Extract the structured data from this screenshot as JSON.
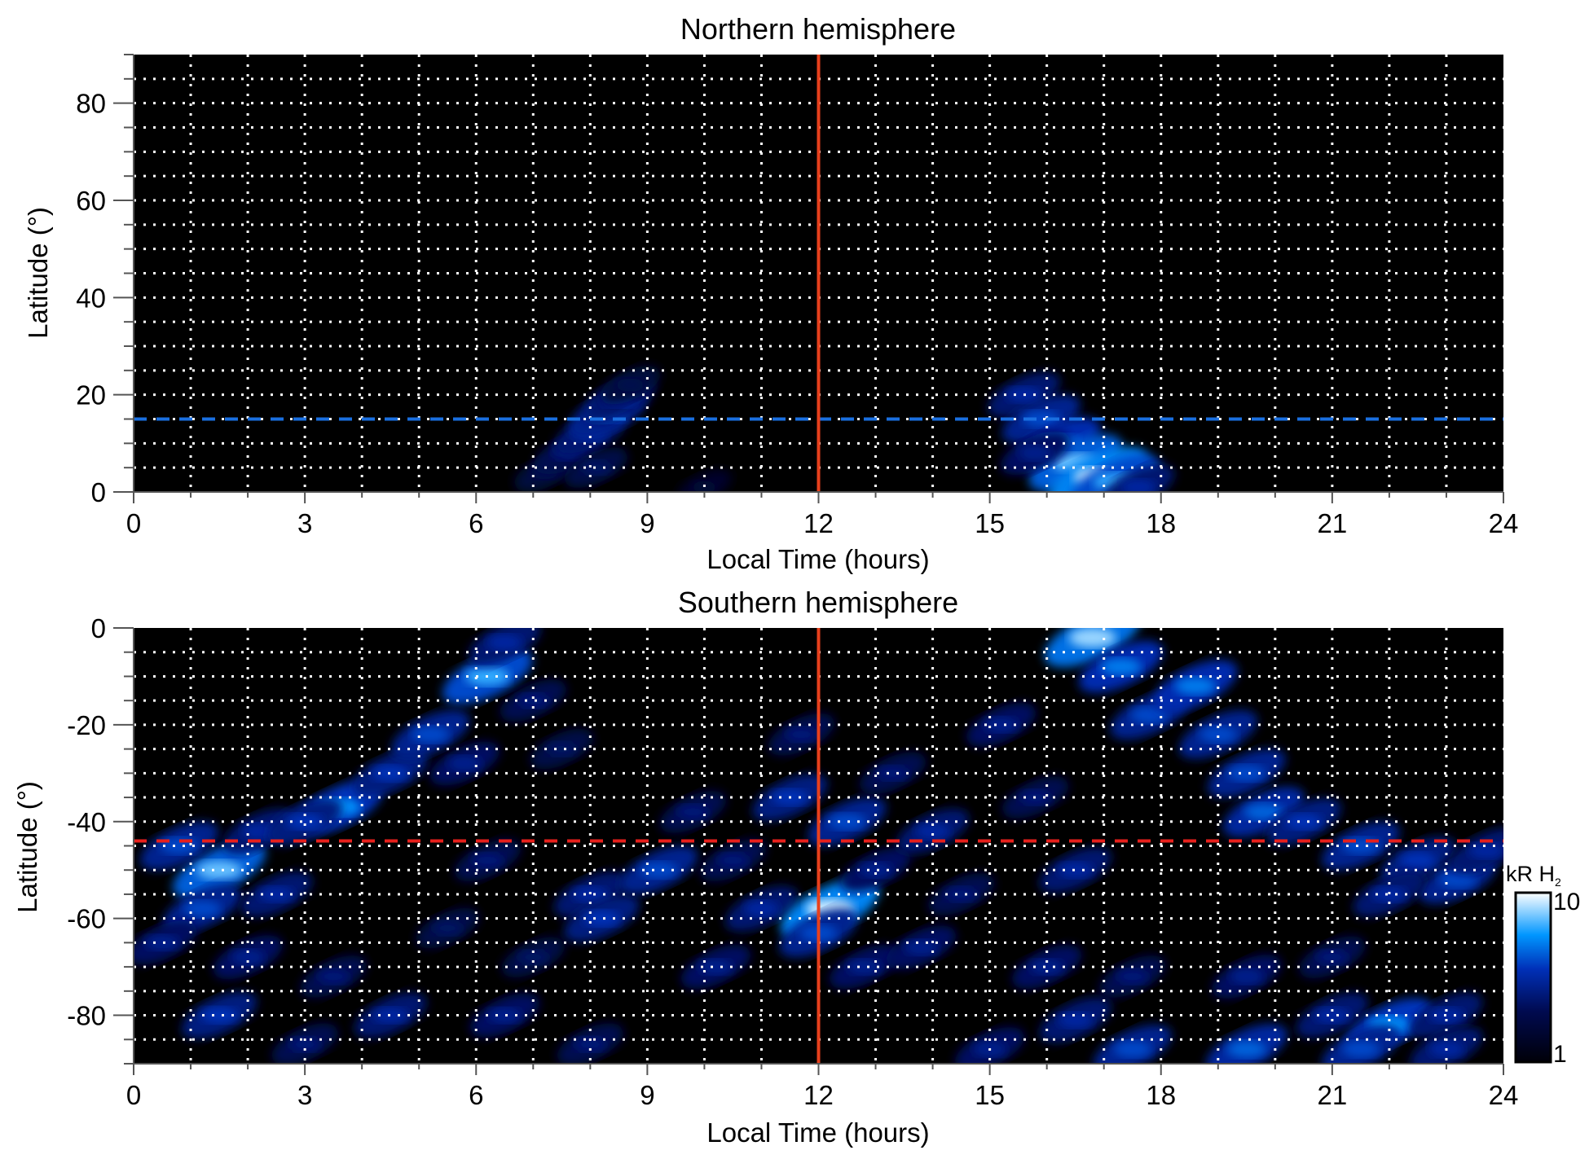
{
  "chart_data": [
    {
      "type": "heatmap",
      "title": "Northern hemisphere",
      "xlabel": "Local Time (hours)",
      "ylabel": "Latitude (°)",
      "xlim": [
        0,
        24
      ],
      "ylim": [
        0,
        90
      ],
      "xticks": [
        0,
        3,
        6,
        9,
        12,
        15,
        18,
        21,
        24
      ],
      "yticks": [
        0,
        20,
        40,
        60,
        80
      ],
      "grid": true,
      "grid_x_step": 1,
      "grid_y_step": 5,
      "vline": {
        "x": 12,
        "color": "#e8401c"
      },
      "hline": {
        "y": 15,
        "color": "#1a6fe0",
        "style": "dashed"
      },
      "emission_regions": [
        [
          7.2,
          4,
          0.3
        ],
        [
          7.6,
          8,
          0.4
        ],
        [
          8.0,
          12,
          0.5
        ],
        [
          8.3,
          16,
          0.6
        ],
        [
          8.5,
          19,
          0.5
        ],
        [
          8.1,
          5,
          0.35
        ],
        [
          8.7,
          22,
          0.3
        ],
        [
          10,
          1,
          0.2
        ],
        [
          15.6,
          20,
          0.5
        ],
        [
          15.9,
          15,
          0.6
        ],
        [
          16.2,
          10,
          0.7
        ],
        [
          16.5,
          6,
          0.85
        ],
        [
          16.9,
          3,
          0.95
        ],
        [
          17.2,
          2,
          0.8
        ],
        [
          15.8,
          8,
          0.45
        ],
        [
          17.6,
          1,
          0.5
        ]
      ]
    },
    {
      "type": "heatmap",
      "title": "Southern hemisphere",
      "xlabel": "Local Time (hours)",
      "ylabel": "Latitude (°)",
      "xlim": [
        0,
        24
      ],
      "ylim": [
        -90,
        0
      ],
      "xticks": [
        0,
        3,
        6,
        9,
        12,
        15,
        18,
        21,
        24
      ],
      "yticks": [
        -80,
        -60,
        -40,
        -20,
        0
      ],
      "grid": true,
      "grid_x_step": 1,
      "grid_y_step": 5,
      "vline": {
        "x": 12,
        "color": "#e8401c"
      },
      "hline": {
        "y": -44,
        "color": "#e8201c",
        "style": "dashed"
      },
      "emission_regions": [
        [
          1.5,
          -50,
          0.85
        ],
        [
          0.8,
          -45,
          0.6
        ],
        [
          1.2,
          -58,
          0.6
        ],
        [
          2.2,
          -42,
          0.5
        ],
        [
          2.5,
          -55,
          0.5
        ],
        [
          3.6,
          -37,
          0.75
        ],
        [
          3.0,
          -40,
          0.55
        ],
        [
          4.5,
          -30,
          0.55
        ],
        [
          5.2,
          -22,
          0.6
        ],
        [
          6.2,
          -10,
          0.8
        ],
        [
          6.5,
          -3,
          0.5
        ],
        [
          5.8,
          -28,
          0.45
        ],
        [
          7.0,
          -15,
          0.4
        ],
        [
          7.5,
          -25,
          0.35
        ],
        [
          0.5,
          -65,
          0.45
        ],
        [
          2.0,
          -68,
          0.45
        ],
        [
          3.5,
          -72,
          0.4
        ],
        [
          1.5,
          -80,
          0.55
        ],
        [
          4.5,
          -80,
          0.5
        ],
        [
          6.5,
          -80,
          0.45
        ],
        [
          3,
          -86,
          0.4
        ],
        [
          8,
          -86,
          0.4
        ],
        [
          7.0,
          -68,
          0.35
        ],
        [
          5.5,
          -62,
          0.35
        ],
        [
          6.2,
          -48,
          0.4
        ],
        [
          8.0,
          -55,
          0.5
        ],
        [
          8.2,
          -60,
          0.55
        ],
        [
          9.2,
          -50,
          0.6
        ],
        [
          9.8,
          -38,
          0.4
        ],
        [
          10.5,
          -48,
          0.4
        ],
        [
          10.2,
          -70,
          0.45
        ],
        [
          11.0,
          -58,
          0.5
        ],
        [
          11.5,
          -35,
          0.55
        ],
        [
          11.7,
          -22,
          0.4
        ],
        [
          12.2,
          -58,
          0.95
        ],
        [
          12.0,
          -63,
          0.6
        ],
        [
          12.5,
          -40,
          0.6
        ],
        [
          13.0,
          -50,
          0.45
        ],
        [
          13.3,
          -30,
          0.4
        ],
        [
          12.8,
          -70,
          0.45
        ],
        [
          14.0,
          -42,
          0.5
        ],
        [
          14.5,
          -55,
          0.4
        ],
        [
          13.8,
          -66,
          0.45
        ],
        [
          15.2,
          -20,
          0.45
        ],
        [
          15.8,
          -35,
          0.4
        ],
        [
          16.5,
          -50,
          0.5
        ],
        [
          16.8,
          -2,
          0.9
        ],
        [
          17.3,
          -8,
          0.7
        ],
        [
          17.8,
          -18,
          0.6
        ],
        [
          18.6,
          -12,
          0.7
        ],
        [
          19.0,
          -22,
          0.6
        ],
        [
          19.5,
          -30,
          0.6
        ],
        [
          19.8,
          -38,
          0.65
        ],
        [
          20.5,
          -40,
          0.55
        ],
        [
          21.5,
          -45,
          0.6
        ],
        [
          22.5,
          -48,
          0.55
        ],
        [
          23.2,
          -52,
          0.6
        ],
        [
          23.7,
          -46,
          0.5
        ],
        [
          22.0,
          -55,
          0.5
        ],
        [
          16.0,
          -70,
          0.45
        ],
        [
          17.5,
          -72,
          0.4
        ],
        [
          19.5,
          -72,
          0.45
        ],
        [
          21.0,
          -68,
          0.4
        ],
        [
          22,
          -82,
          0.75
        ],
        [
          21,
          -80,
          0.5
        ],
        [
          23,
          -80,
          0.5
        ],
        [
          16.5,
          -81,
          0.5
        ],
        [
          17.5,
          -87,
          0.6
        ],
        [
          19.5,
          -87,
          0.65
        ],
        [
          21.5,
          -87,
          0.6
        ],
        [
          23,
          -87,
          0.5
        ],
        [
          15,
          -87,
          0.45
        ]
      ]
    }
  ],
  "colorbar": {
    "label": "kR H",
    "label_subscript": "2",
    "min_label": "1",
    "max_label": "10",
    "range": [
      1,
      10
    ],
    "scale": "log",
    "colors": [
      "#000008",
      "#000a50",
      "#0030b8",
      "#0096ff",
      "#ffffff"
    ]
  }
}
